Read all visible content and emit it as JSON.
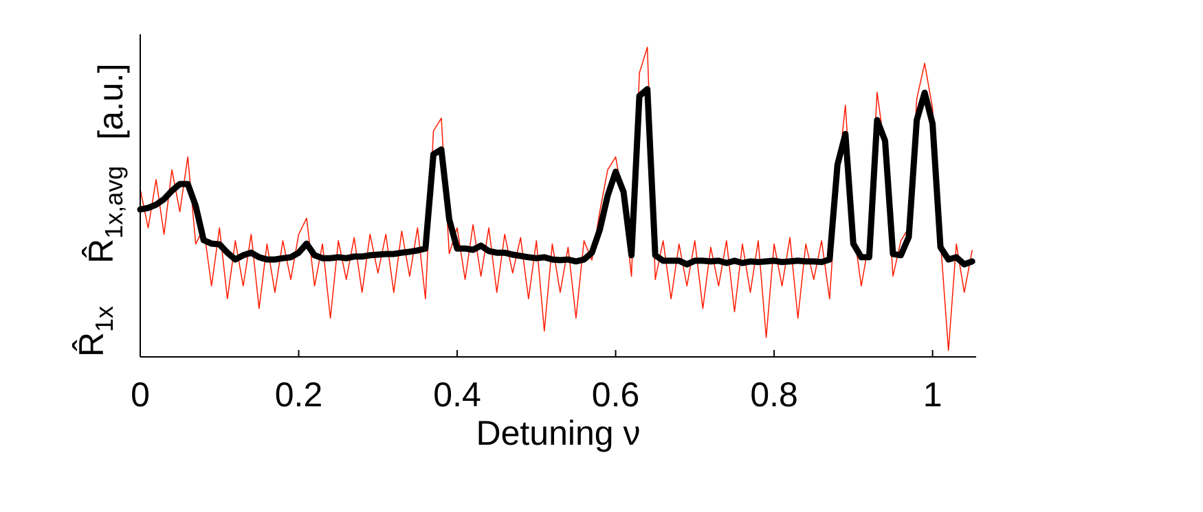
{
  "chart_data": {
    "type": "line",
    "xlabel": "Detuning ν",
    "ylabel_unit": "[a.u.]",
    "x": [
      0,
      0.01,
      0.02,
      0.03,
      0.04,
      0.05,
      0.06,
      0.07,
      0.08,
      0.09,
      0.1,
      0.11,
      0.12,
      0.13,
      0.14,
      0.15,
      0.16,
      0.17,
      0.18,
      0.19,
      0.2,
      0.21,
      0.22,
      0.23,
      0.24,
      0.25,
      0.26,
      0.27,
      0.28,
      0.29,
      0.3,
      0.31,
      0.32,
      0.33,
      0.34,
      0.35,
      0.36,
      0.37,
      0.38,
      0.39,
      0.4,
      0.41,
      0.42,
      0.43,
      0.44,
      0.45,
      0.46,
      0.47,
      0.48,
      0.49,
      0.5,
      0.51,
      0.52,
      0.53,
      0.54,
      0.55,
      0.56,
      0.57,
      0.58,
      0.59,
      0.6,
      0.61,
      0.62,
      0.63,
      0.64,
      0.65,
      0.66,
      0.67,
      0.68,
      0.69,
      0.7,
      0.71,
      0.72,
      0.73,
      0.74,
      0.75,
      0.76,
      0.77,
      0.78,
      0.79,
      0.8,
      0.81,
      0.82,
      0.83,
      0.84,
      0.85,
      0.86,
      0.87,
      0.88,
      0.89,
      0.9,
      0.91,
      0.92,
      0.93,
      0.94,
      0.95,
      0.96,
      0.97,
      0.98,
      0.99,
      1,
      1.01,
      1.02,
      1.03,
      1.04,
      1.05
    ],
    "series": [
      {
        "name": "R̂1x",
        "color": "#ff1a00",
        "width": 1.5,
        "values": [
          0.52,
          0.4,
          0.55,
          0.38,
          0.58,
          0.45,
          0.62,
          0.35,
          0.4,
          0.22,
          0.4,
          0.18,
          0.36,
          0.22,
          0.38,
          0.15,
          0.35,
          0.2,
          0.36,
          0.24,
          0.38,
          0.43,
          0.22,
          0.35,
          0.12,
          0.36,
          0.24,
          0.37,
          0.2,
          0.38,
          0.26,
          0.38,
          0.2,
          0.39,
          0.25,
          0.4,
          0.18,
          0.7,
          0.74,
          0.32,
          0.4,
          0.24,
          0.41,
          0.25,
          0.4,
          0.2,
          0.38,
          0.26,
          0.37,
          0.18,
          0.36,
          0.08,
          0.35,
          0.2,
          0.34,
          0.12,
          0.36,
          0.3,
          0.45,
          0.58,
          0.62,
          0.48,
          0.25,
          0.88,
          0.96,
          0.24,
          0.36,
          0.18,
          0.35,
          0.22,
          0.36,
          0.15,
          0.34,
          0.22,
          0.36,
          0.14,
          0.35,
          0.2,
          0.36,
          0.06,
          0.35,
          0.22,
          0.37,
          0.12,
          0.35,
          0.24,
          0.36,
          0.18,
          0.55,
          0.78,
          0.4,
          0.22,
          0.36,
          0.82,
          0.64,
          0.25,
          0.36,
          0.4,
          0.8,
          0.91,
          0.77,
          0.36,
          0.02,
          0.35,
          0.2,
          0.33
        ]
      },
      {
        "name": "R̂1x,avg",
        "color": "#000000",
        "width": 9,
        "values": [
          0.457,
          0.462,
          0.472,
          0.489,
          0.515,
          0.536,
          0.536,
          0.468,
          0.362,
          0.351,
          0.349,
          0.323,
          0.302,
          0.315,
          0.323,
          0.309,
          0.302,
          0.302,
          0.306,
          0.309,
          0.323,
          0.351,
          0.315,
          0.306,
          0.306,
          0.309,
          0.306,
          0.311,
          0.311,
          0.315,
          0.317,
          0.319,
          0.319,
          0.323,
          0.326,
          0.33,
          0.336,
          0.628,
          0.643,
          0.426,
          0.336,
          0.336,
          0.332,
          0.345,
          0.328,
          0.323,
          0.323,
          0.317,
          0.313,
          0.309,
          0.306,
          0.309,
          0.302,
          0.3,
          0.302,
          0.296,
          0.302,
          0.323,
          0.394,
          0.5,
          0.574,
          0.511,
          0.315,
          0.809,
          0.83,
          0.315,
          0.298,
          0.298,
          0.298,
          0.287,
          0.298,
          0.298,
          0.296,
          0.298,
          0.291,
          0.298,
          0.291,
          0.296,
          0.294,
          0.296,
          0.298,
          0.294,
          0.296,
          0.298,
          0.296,
          0.296,
          0.294,
          0.302,
          0.596,
          0.691,
          0.351,
          0.309,
          0.309,
          0.734,
          0.67,
          0.319,
          0.315,
          0.372,
          0.734,
          0.819,
          0.723,
          0.34,
          0.302,
          0.309,
          0.287,
          0.296
        ]
      }
    ],
    "xlim": [
      0,
      1.055
    ],
    "ylim": [
      0,
      1
    ],
    "xticks": [
      0,
      0.2,
      0.4,
      0.6,
      0.8,
      1
    ],
    "grid": false
  }
}
